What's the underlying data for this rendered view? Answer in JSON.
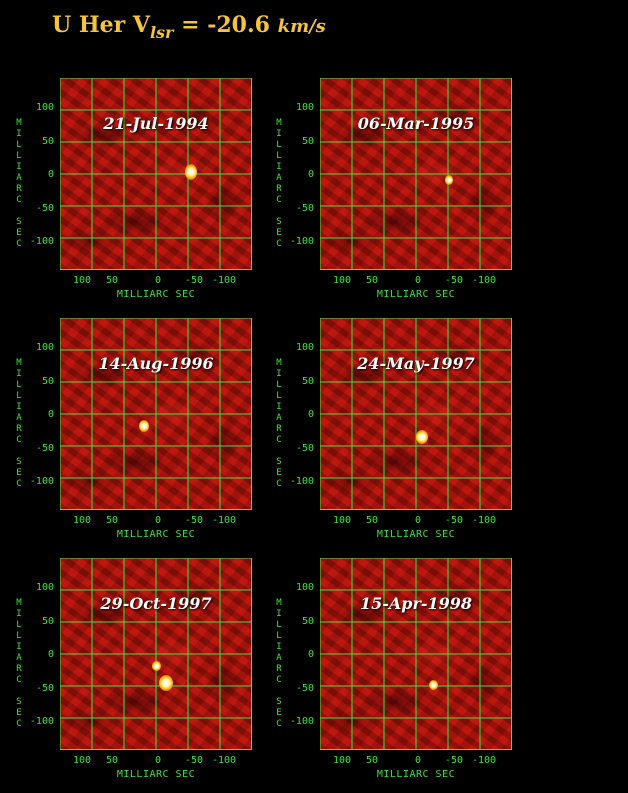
{
  "title": {
    "main": "U Her V",
    "subscript": "lsr",
    "equals": " = -20.6 ",
    "unit": "km/s"
  },
  "axes": {
    "y_ticks": [
      "100",
      "50",
      "0",
      "-50",
      "-100"
    ],
    "x_ticks": [
      "100",
      "50",
      "0",
      "-50",
      "-100"
    ],
    "y_label_lines": [
      "MILLIARC",
      "SEC"
    ],
    "x_label": "MILLIARC SEC"
  },
  "panels": [
    {
      "date": "21-Jul-1994"
    },
    {
      "date": "06-Mar-1995"
    },
    {
      "date": "14-Aug-1996"
    },
    {
      "date": "24-May-1997"
    },
    {
      "date": "29-Oct-1997"
    },
    {
      "date": "15-Apr-1998"
    }
  ],
  "colors": {
    "grid": "#3fe23f",
    "title": "#f5c43a",
    "map": "#b1140c"
  }
}
